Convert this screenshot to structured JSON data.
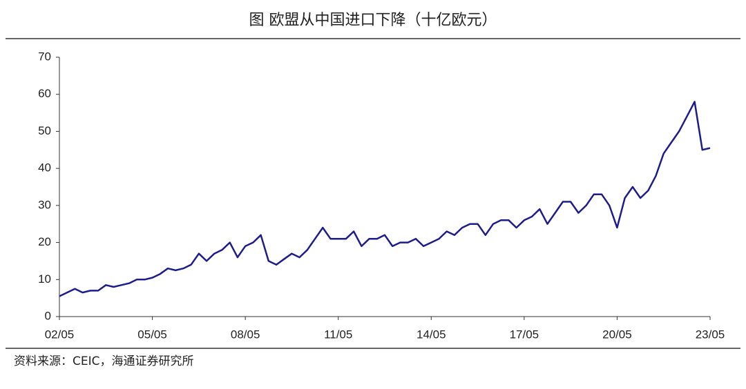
{
  "chart_data": {
    "type": "line",
    "title": "图 欧盟从中国进口下降（十亿欧元）",
    "source": "资料来源：CEIC，海通证券研究所",
    "categories": [
      "02/05",
      null,
      null,
      null,
      null,
      null,
      null,
      null,
      null,
      null,
      null,
      null,
      "05/05",
      null,
      null,
      null,
      null,
      null,
      null,
      null,
      null,
      null,
      null,
      null,
      "08/05",
      null,
      null,
      null,
      null,
      null,
      null,
      null,
      null,
      null,
      null,
      null,
      "11/05",
      null,
      null,
      null,
      null,
      null,
      null,
      null,
      null,
      null,
      null,
      null,
      "14/05",
      null,
      null,
      null,
      null,
      null,
      null,
      null,
      null,
      null,
      null,
      null,
      "17/05",
      null,
      null,
      null,
      null,
      null,
      null,
      null,
      null,
      null,
      null,
      null,
      "20/05",
      null,
      null,
      null,
      null,
      null,
      null,
      null,
      null,
      null,
      null,
      null,
      "23/05"
    ],
    "series": [
      {
        "name": "欧盟从中国进口",
        "color": "#1c1c8f",
        "values": [
          5.5,
          6.5,
          7.5,
          6.5,
          7,
          7,
          8.5,
          8,
          8.5,
          9,
          10,
          10,
          10.5,
          11.5,
          13,
          12.5,
          13,
          14,
          17,
          15,
          17,
          18,
          20,
          16,
          19,
          20,
          22,
          15,
          14,
          15.5,
          17,
          16,
          18,
          21,
          24,
          21,
          21,
          21,
          23,
          19,
          21,
          21,
          22,
          19,
          20,
          20,
          21,
          19,
          20,
          21,
          23,
          22,
          24,
          25,
          25,
          22,
          25,
          26,
          26,
          24,
          26,
          27,
          29,
          25,
          28,
          31,
          31,
          28,
          30,
          33,
          33,
          30,
          24,
          32,
          35,
          32,
          34,
          38,
          44,
          47,
          50,
          54,
          58,
          45,
          45.5
        ]
      }
    ],
    "ylim": [
      0,
      70
    ],
    "yticks": [
      0,
      10,
      20,
      30,
      40,
      50,
      60,
      70
    ]
  }
}
